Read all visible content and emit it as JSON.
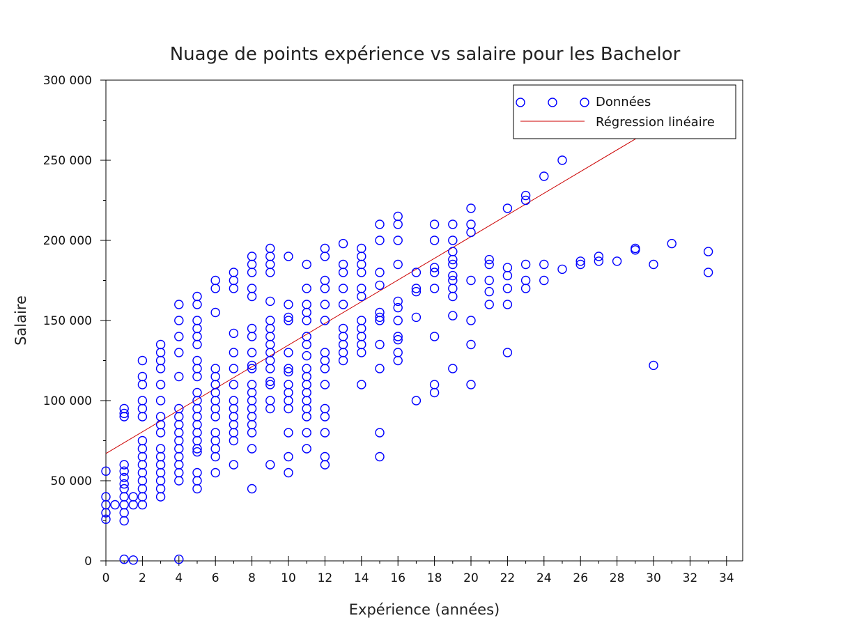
{
  "chart_data": {
    "type": "scatter",
    "title": "Nuage de points expérience vs salaire pour les Bachelor",
    "xlabel": "Expérience (années)",
    "ylabel": "Salaire",
    "xlim": [
      0,
      35
    ],
    "ylim": [
      0,
      300000
    ],
    "x_ticks": [
      0,
      2,
      4,
      6,
      8,
      10,
      12,
      14,
      16,
      18,
      20,
      22,
      24,
      26,
      28,
      30,
      32,
      34
    ],
    "x_tick_labels": [
      "0",
      "2",
      "4",
      "6",
      "8",
      "10",
      "12",
      "14",
      "16",
      "18",
      "20",
      "22",
      "24",
      "26",
      "28",
      "30",
      "32",
      "34"
    ],
    "y_ticks": [
      0,
      50000,
      100000,
      150000,
      200000,
      250000,
      300000
    ],
    "y_tick_labels": [
      "0",
      "50 000",
      "100 000",
      "150 000",
      "200 000",
      "250 000",
      "300 000"
    ],
    "grid": false,
    "legend_position": "top-right",
    "legend": [
      {
        "label": "Données",
        "kind": "marker",
        "color": "#0000ff"
      },
      {
        "label": "Régression linéaire",
        "kind": "line",
        "color": "#cc0000"
      }
    ],
    "series": [
      {
        "name": "Données",
        "kind": "scatter",
        "color": "#0000ff",
        "points": [
          [
            0,
            56000
          ],
          [
            0,
            40000
          ],
          [
            0,
            35000
          ],
          [
            0,
            30000
          ],
          [
            0,
            26000
          ],
          [
            0.5,
            35000
          ],
          [
            1,
            95000
          ],
          [
            1,
            92000
          ],
          [
            1,
            90000
          ],
          [
            1,
            60000
          ],
          [
            1,
            56000
          ],
          [
            1,
            52000
          ],
          [
            1,
            48000
          ],
          [
            1,
            45000
          ],
          [
            1,
            40000
          ],
          [
            1,
            35000
          ],
          [
            1,
            30000
          ],
          [
            1,
            25000
          ],
          [
            1,
            1000
          ],
          [
            1.5,
            40000
          ],
          [
            1.5,
            35000
          ],
          [
            1.5,
            500
          ],
          [
            2,
            125000
          ],
          [
            2,
            115000
          ],
          [
            2,
            110000
          ],
          [
            2,
            100000
          ],
          [
            2,
            95000
          ],
          [
            2,
            90000
          ],
          [
            2,
            75000
          ],
          [
            2,
            70000
          ],
          [
            2,
            65000
          ],
          [
            2,
            60000
          ],
          [
            2,
            55000
          ],
          [
            2,
            50000
          ],
          [
            2,
            45000
          ],
          [
            2,
            40000
          ],
          [
            2,
            35000
          ],
          [
            3,
            135000
          ],
          [
            3,
            130000
          ],
          [
            3,
            125000
          ],
          [
            3,
            120000
          ],
          [
            3,
            110000
          ],
          [
            3,
            100000
          ],
          [
            3,
            90000
          ],
          [
            3,
            85000
          ],
          [
            3,
            80000
          ],
          [
            3,
            70000
          ],
          [
            3,
            65000
          ],
          [
            3,
            60000
          ],
          [
            3,
            55000
          ],
          [
            3,
            50000
          ],
          [
            3,
            45000
          ],
          [
            3,
            40000
          ],
          [
            4,
            160000
          ],
          [
            4,
            150000
          ],
          [
            4,
            140000
          ],
          [
            4,
            130000
          ],
          [
            4,
            115000
          ],
          [
            4,
            95000
          ],
          [
            4,
            90000
          ],
          [
            4,
            85000
          ],
          [
            4,
            80000
          ],
          [
            4,
            75000
          ],
          [
            4,
            70000
          ],
          [
            4,
            65000
          ],
          [
            4,
            60000
          ],
          [
            4,
            55000
          ],
          [
            4,
            50000
          ],
          [
            4,
            1000
          ],
          [
            5,
            165000
          ],
          [
            5,
            160000
          ],
          [
            5,
            150000
          ],
          [
            5,
            145000
          ],
          [
            5,
            140000
          ],
          [
            5,
            135000
          ],
          [
            5,
            125000
          ],
          [
            5,
            120000
          ],
          [
            5,
            115000
          ],
          [
            5,
            105000
          ],
          [
            5,
            100000
          ],
          [
            5,
            95000
          ],
          [
            5,
            90000
          ],
          [
            5,
            85000
          ],
          [
            5,
            80000
          ],
          [
            5,
            75000
          ],
          [
            5,
            70000
          ],
          [
            5,
            68000
          ],
          [
            5,
            55000
          ],
          [
            5,
            50000
          ],
          [
            5,
            45000
          ],
          [
            6,
            175000
          ],
          [
            6,
            170000
          ],
          [
            6,
            155000
          ],
          [
            6,
            120000
          ],
          [
            6,
            115000
          ],
          [
            6,
            110000
          ],
          [
            6,
            105000
          ],
          [
            6,
            100000
          ],
          [
            6,
            95000
          ],
          [
            6,
            90000
          ],
          [
            6,
            80000
          ],
          [
            6,
            75000
          ],
          [
            6,
            70000
          ],
          [
            6,
            65000
          ],
          [
            6,
            55000
          ],
          [
            7,
            180000
          ],
          [
            7,
            175000
          ],
          [
            7,
            170000
          ],
          [
            7,
            142000
          ],
          [
            7,
            130000
          ],
          [
            7,
            120000
          ],
          [
            7,
            110000
          ],
          [
            7,
            100000
          ],
          [
            7,
            95000
          ],
          [
            7,
            90000
          ],
          [
            7,
            85000
          ],
          [
            7,
            80000
          ],
          [
            7,
            75000
          ],
          [
            7,
            60000
          ],
          [
            8,
            190000
          ],
          [
            8,
            185000
          ],
          [
            8,
            180000
          ],
          [
            8,
            170000
          ],
          [
            8,
            165000
          ],
          [
            8,
            145000
          ],
          [
            8,
            140000
          ],
          [
            8,
            130000
          ],
          [
            8,
            122000
          ],
          [
            8,
            120000
          ],
          [
            8,
            110000
          ],
          [
            8,
            105000
          ],
          [
            8,
            100000
          ],
          [
            8,
            95000
          ],
          [
            8,
            90000
          ],
          [
            8,
            85000
          ],
          [
            8,
            80000
          ],
          [
            8,
            70000
          ],
          [
            8,
            45000
          ],
          [
            9,
            195000
          ],
          [
            9,
            190000
          ],
          [
            9,
            185000
          ],
          [
            9,
            180000
          ],
          [
            9,
            162000
          ],
          [
            9,
            150000
          ],
          [
            9,
            145000
          ],
          [
            9,
            140000
          ],
          [
            9,
            135000
          ],
          [
            9,
            130000
          ],
          [
            9,
            125000
          ],
          [
            9,
            120000
          ],
          [
            9,
            112000
          ],
          [
            9,
            110000
          ],
          [
            9,
            100000
          ],
          [
            9,
            95000
          ],
          [
            9,
            60000
          ],
          [
            10,
            190000
          ],
          [
            10,
            160000
          ],
          [
            10,
            152000
          ],
          [
            10,
            150000
          ],
          [
            10,
            130000
          ],
          [
            10,
            120000
          ],
          [
            10,
            118000
          ],
          [
            10,
            110000
          ],
          [
            10,
            105000
          ],
          [
            10,
            100000
          ],
          [
            10,
            95000
          ],
          [
            10,
            80000
          ],
          [
            10,
            65000
          ],
          [
            10,
            55000
          ],
          [
            11,
            185000
          ],
          [
            11,
            170000
          ],
          [
            11,
            160000
          ],
          [
            11,
            155000
          ],
          [
            11,
            150000
          ],
          [
            11,
            140000
          ],
          [
            11,
            135000
          ],
          [
            11,
            128000
          ],
          [
            11,
            120000
          ],
          [
            11,
            115000
          ],
          [
            11,
            110000
          ],
          [
            11,
            105000
          ],
          [
            11,
            100000
          ],
          [
            11,
            95000
          ],
          [
            11,
            90000
          ],
          [
            11,
            80000
          ],
          [
            11,
            70000
          ],
          [
            12,
            195000
          ],
          [
            12,
            190000
          ],
          [
            12,
            175000
          ],
          [
            12,
            170000
          ],
          [
            12,
            160000
          ],
          [
            12,
            150000
          ],
          [
            12,
            130000
          ],
          [
            12,
            125000
          ],
          [
            12,
            120000
          ],
          [
            12,
            110000
          ],
          [
            12,
            95000
          ],
          [
            12,
            90000
          ],
          [
            12,
            80000
          ],
          [
            12,
            65000
          ],
          [
            12,
            60000
          ],
          [
            13,
            198000
          ],
          [
            13,
            185000
          ],
          [
            13,
            180000
          ],
          [
            13,
            170000
          ],
          [
            13,
            160000
          ],
          [
            13,
            145000
          ],
          [
            13,
            140000
          ],
          [
            13,
            135000
          ],
          [
            13,
            130000
          ],
          [
            13,
            125000
          ],
          [
            14,
            195000
          ],
          [
            14,
            190000
          ],
          [
            14,
            185000
          ],
          [
            14,
            180000
          ],
          [
            14,
            170000
          ],
          [
            14,
            165000
          ],
          [
            14,
            150000
          ],
          [
            14,
            145000
          ],
          [
            14,
            140000
          ],
          [
            14,
            135000
          ],
          [
            14,
            130000
          ],
          [
            14,
            110000
          ],
          [
            15,
            210000
          ],
          [
            15,
            200000
          ],
          [
            15,
            180000
          ],
          [
            15,
            172000
          ],
          [
            15,
            155000
          ],
          [
            15,
            152000
          ],
          [
            15,
            150000
          ],
          [
            15,
            135000
          ],
          [
            15,
            120000
          ],
          [
            15,
            80000
          ],
          [
            15,
            65000
          ],
          [
            16,
            215000
          ],
          [
            16,
            210000
          ],
          [
            16,
            200000
          ],
          [
            16,
            185000
          ],
          [
            16,
            162000
          ],
          [
            16,
            158000
          ],
          [
            16,
            150000
          ],
          [
            16,
            140000
          ],
          [
            16,
            138000
          ],
          [
            16,
            130000
          ],
          [
            16,
            125000
          ],
          [
            17,
            180000
          ],
          [
            17,
            170000
          ],
          [
            17,
            168000
          ],
          [
            17,
            152000
          ],
          [
            17,
            100000
          ],
          [
            18,
            210000
          ],
          [
            18,
            200000
          ],
          [
            18,
            183000
          ],
          [
            18,
            180000
          ],
          [
            18,
            170000
          ],
          [
            18,
            140000
          ],
          [
            18,
            110000
          ],
          [
            18,
            105000
          ],
          [
            19,
            210000
          ],
          [
            19,
            200000
          ],
          [
            19,
            193000
          ],
          [
            19,
            188000
          ],
          [
            19,
            185000
          ],
          [
            19,
            178000
          ],
          [
            19,
            175000
          ],
          [
            19,
            170000
          ],
          [
            19,
            165000
          ],
          [
            19,
            153000
          ],
          [
            19,
            120000
          ],
          [
            20,
            220000
          ],
          [
            20,
            210000
          ],
          [
            20,
            205000
          ],
          [
            20,
            175000
          ],
          [
            20,
            150000
          ],
          [
            20,
            135000
          ],
          [
            20,
            110000
          ],
          [
            21,
            188000
          ],
          [
            21,
            185000
          ],
          [
            21,
            175000
          ],
          [
            21,
            168000
          ],
          [
            21,
            160000
          ],
          [
            22,
            220000
          ],
          [
            22,
            183000
          ],
          [
            22,
            178000
          ],
          [
            22,
            170000
          ],
          [
            22,
            160000
          ],
          [
            22,
            130000
          ],
          [
            23,
            228000
          ],
          [
            23,
            225000
          ],
          [
            23,
            185000
          ],
          [
            23,
            175000
          ],
          [
            23,
            170000
          ],
          [
            24,
            240000
          ],
          [
            24,
            185000
          ],
          [
            24,
            175000
          ],
          [
            25,
            250000
          ],
          [
            25,
            182000
          ],
          [
            26,
            187000
          ],
          [
            26,
            185000
          ],
          [
            27,
            190000
          ],
          [
            27,
            187000
          ],
          [
            28,
            187000
          ],
          [
            29,
            195000
          ],
          [
            29,
            194000
          ],
          [
            30,
            185000
          ],
          [
            30,
            122000
          ],
          [
            31,
            198000
          ],
          [
            33,
            193000
          ],
          [
            33,
            180000
          ]
        ]
      },
      {
        "name": "Régression linéaire",
        "kind": "line",
        "color": "#cc0000",
        "x": [
          0,
          30
        ],
        "y": [
          67000,
          270000
        ]
      }
    ]
  }
}
